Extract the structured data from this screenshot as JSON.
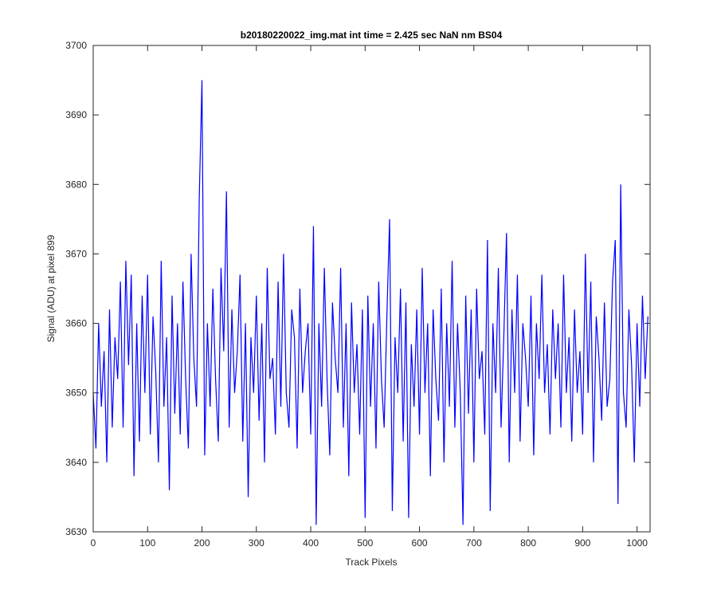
{
  "chart_data": {
    "type": "line",
    "title": "b20180220022_img.mat int time = 2.425 sec  NaN nm BS04",
    "x_label": "Track Pixels",
    "y_label": "Signal (ADU) at pixel 899",
    "xlim": [
      0,
      1024
    ],
    "ylim": [
      3630,
      3700
    ],
    "xticks": [
      0,
      100,
      200,
      300,
      400,
      500,
      600,
      700,
      800,
      900,
      1000
    ],
    "yticks": [
      3630,
      3640,
      3650,
      3660,
      3670,
      3680,
      3690,
      3700
    ],
    "x": [
      0,
      5,
      10,
      15,
      20,
      25,
      30,
      35,
      40,
      45,
      50,
      55,
      60,
      65,
      70,
      75,
      80,
      85,
      90,
      95,
      100,
      105,
      110,
      115,
      120,
      125,
      130,
      135,
      140,
      145,
      150,
      155,
      160,
      165,
      170,
      175,
      180,
      185,
      190,
      195,
      200,
      205,
      210,
      215,
      220,
      225,
      230,
      235,
      240,
      245,
      250,
      255,
      260,
      265,
      270,
      275,
      280,
      285,
      290,
      295,
      300,
      305,
      310,
      315,
      320,
      325,
      330,
      335,
      340,
      345,
      350,
      355,
      360,
      365,
      370,
      375,
      380,
      385,
      390,
      395,
      400,
      405,
      410,
      415,
      420,
      425,
      430,
      435,
      440,
      445,
      450,
      455,
      460,
      465,
      470,
      475,
      480,
      485,
      490,
      495,
      500,
      505,
      510,
      515,
      520,
      525,
      530,
      535,
      540,
      545,
      550,
      555,
      560,
      565,
      570,
      575,
      580,
      585,
      590,
      595,
      600,
      605,
      610,
      615,
      620,
      625,
      630,
      635,
      640,
      645,
      650,
      655,
      660,
      665,
      670,
      675,
      680,
      685,
      690,
      695,
      700,
      705,
      710,
      715,
      720,
      725,
      730,
      735,
      740,
      745,
      750,
      755,
      760,
      765,
      770,
      775,
      780,
      785,
      790,
      795,
      800,
      805,
      810,
      815,
      820,
      825,
      830,
      835,
      840,
      845,
      850,
      855,
      860,
      865,
      870,
      875,
      880,
      885,
      890,
      895,
      900,
      905,
      910,
      915,
      920,
      925,
      930,
      935,
      940,
      945,
      950,
      955,
      960,
      965,
      970,
      975,
      980,
      985,
      990,
      995,
      1000,
      1005,
      1010,
      1015,
      1020
    ],
    "series": [
      {
        "name": "signal",
        "color": "#0000ff",
        "values": [
          3650,
          3642,
          3660,
          3648,
          3656,
          3640,
          3662,
          3645,
          3658,
          3652,
          3666,
          3645,
          3669,
          3654,
          3667,
          3638,
          3660,
          3643,
          3664,
          3650,
          3667,
          3644,
          3661,
          3653,
          3640,
          3669,
          3648,
          3658,
          3636,
          3664,
          3647,
          3660,
          3644,
          3666,
          3652,
          3642,
          3670,
          3655,
          3648,
          3678,
          3695,
          3641,
          3660,
          3648,
          3665,
          3652,
          3643,
          3668,
          3656,
          3679,
          3645,
          3662,
          3650,
          3656,
          3667,
          3643,
          3660,
          3635,
          3658,
          3650,
          3664,
          3646,
          3660,
          3640,
          3668,
          3652,
          3655,
          3644,
          3666,
          3648,
          3670,
          3650,
          3645,
          3662,
          3658,
          3642,
          3665,
          3650,
          3656,
          3660,
          3644,
          3674,
          3631,
          3660,
          3648,
          3668,
          3652,
          3641,
          3663,
          3655,
          3650,
          3668,
          3645,
          3660,
          3638,
          3663,
          3650,
          3657,
          3644,
          3662,
          3632,
          3664,
          3648,
          3660,
          3642,
          3666,
          3652,
          3645,
          3661,
          3675,
          3633,
          3658,
          3650,
          3665,
          3643,
          3663,
          3632,
          3657,
          3648,
          3662,
          3644,
          3668,
          3650,
          3660,
          3638,
          3662,
          3652,
          3646,
          3665,
          3640,
          3660,
          3648,
          3669,
          3645,
          3660,
          3650,
          3631,
          3664,
          3647,
          3662,
          3640,
          3665,
          3652,
          3656,
          3644,
          3672,
          3633,
          3660,
          3650,
          3668,
          3645,
          3658,
          3673,
          3640,
          3662,
          3650,
          3667,
          3643,
          3660,
          3655,
          3648,
          3664,
          3641,
          3660,
          3652,
          3667,
          3650,
          3657,
          3644,
          3662,
          3652,
          3660,
          3645,
          3667,
          3650,
          3658,
          3643,
          3662,
          3650,
          3656,
          3644,
          3670,
          3650,
          3666,
          3640,
          3661,
          3655,
          3646,
          3663,
          3648,
          3652,
          3666,
          3672,
          3634,
          3680,
          3650,
          3645,
          3662,
          3654,
          3640,
          3660,
          3648,
          3664,
          3652,
          3661
        ]
      }
    ]
  }
}
